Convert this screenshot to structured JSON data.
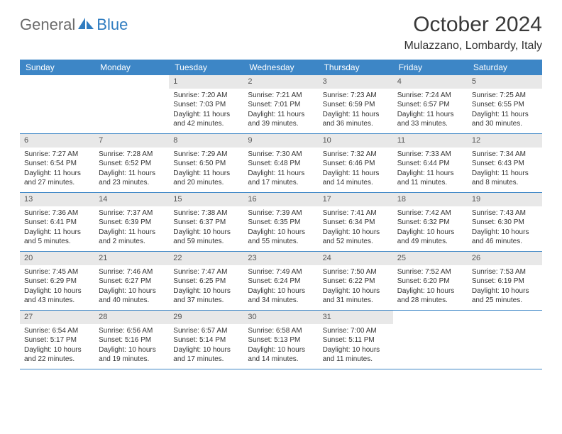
{
  "logo": {
    "part1": "General",
    "part2": "Blue"
  },
  "title": "October 2024",
  "location": "Mulazzano, Lombardy, Italy",
  "colors": {
    "header_bar": "#3d86c6",
    "header_text": "#ffffff",
    "daynum_bg": "#e8e8e8",
    "daynum_text": "#555555",
    "body_text": "#333333",
    "rule": "#3d86c6",
    "logo_gray": "#6b6b6b",
    "logo_blue": "#2f7cc0"
  },
  "dayNames": [
    "Sunday",
    "Monday",
    "Tuesday",
    "Wednesday",
    "Thursday",
    "Friday",
    "Saturday"
  ],
  "weeks": [
    [
      null,
      null,
      {
        "n": "1",
        "sr": "Sunrise: 7:20 AM",
        "ss": "Sunset: 7:03 PM",
        "dl1": "Daylight: 11 hours",
        "dl2": "and 42 minutes."
      },
      {
        "n": "2",
        "sr": "Sunrise: 7:21 AM",
        "ss": "Sunset: 7:01 PM",
        "dl1": "Daylight: 11 hours",
        "dl2": "and 39 minutes."
      },
      {
        "n": "3",
        "sr": "Sunrise: 7:23 AM",
        "ss": "Sunset: 6:59 PM",
        "dl1": "Daylight: 11 hours",
        "dl2": "and 36 minutes."
      },
      {
        "n": "4",
        "sr": "Sunrise: 7:24 AM",
        "ss": "Sunset: 6:57 PM",
        "dl1": "Daylight: 11 hours",
        "dl2": "and 33 minutes."
      },
      {
        "n": "5",
        "sr": "Sunrise: 7:25 AM",
        "ss": "Sunset: 6:55 PM",
        "dl1": "Daylight: 11 hours",
        "dl2": "and 30 minutes."
      }
    ],
    [
      {
        "n": "6",
        "sr": "Sunrise: 7:27 AM",
        "ss": "Sunset: 6:54 PM",
        "dl1": "Daylight: 11 hours",
        "dl2": "and 27 minutes."
      },
      {
        "n": "7",
        "sr": "Sunrise: 7:28 AM",
        "ss": "Sunset: 6:52 PM",
        "dl1": "Daylight: 11 hours",
        "dl2": "and 23 minutes."
      },
      {
        "n": "8",
        "sr": "Sunrise: 7:29 AM",
        "ss": "Sunset: 6:50 PM",
        "dl1": "Daylight: 11 hours",
        "dl2": "and 20 minutes."
      },
      {
        "n": "9",
        "sr": "Sunrise: 7:30 AM",
        "ss": "Sunset: 6:48 PM",
        "dl1": "Daylight: 11 hours",
        "dl2": "and 17 minutes."
      },
      {
        "n": "10",
        "sr": "Sunrise: 7:32 AM",
        "ss": "Sunset: 6:46 PM",
        "dl1": "Daylight: 11 hours",
        "dl2": "and 14 minutes."
      },
      {
        "n": "11",
        "sr": "Sunrise: 7:33 AM",
        "ss": "Sunset: 6:44 PM",
        "dl1": "Daylight: 11 hours",
        "dl2": "and 11 minutes."
      },
      {
        "n": "12",
        "sr": "Sunrise: 7:34 AM",
        "ss": "Sunset: 6:43 PM",
        "dl1": "Daylight: 11 hours",
        "dl2": "and 8 minutes."
      }
    ],
    [
      {
        "n": "13",
        "sr": "Sunrise: 7:36 AM",
        "ss": "Sunset: 6:41 PM",
        "dl1": "Daylight: 11 hours",
        "dl2": "and 5 minutes."
      },
      {
        "n": "14",
        "sr": "Sunrise: 7:37 AM",
        "ss": "Sunset: 6:39 PM",
        "dl1": "Daylight: 11 hours",
        "dl2": "and 2 minutes."
      },
      {
        "n": "15",
        "sr": "Sunrise: 7:38 AM",
        "ss": "Sunset: 6:37 PM",
        "dl1": "Daylight: 10 hours",
        "dl2": "and 59 minutes."
      },
      {
        "n": "16",
        "sr": "Sunrise: 7:39 AM",
        "ss": "Sunset: 6:35 PM",
        "dl1": "Daylight: 10 hours",
        "dl2": "and 55 minutes."
      },
      {
        "n": "17",
        "sr": "Sunrise: 7:41 AM",
        "ss": "Sunset: 6:34 PM",
        "dl1": "Daylight: 10 hours",
        "dl2": "and 52 minutes."
      },
      {
        "n": "18",
        "sr": "Sunrise: 7:42 AM",
        "ss": "Sunset: 6:32 PM",
        "dl1": "Daylight: 10 hours",
        "dl2": "and 49 minutes."
      },
      {
        "n": "19",
        "sr": "Sunrise: 7:43 AM",
        "ss": "Sunset: 6:30 PM",
        "dl1": "Daylight: 10 hours",
        "dl2": "and 46 minutes."
      }
    ],
    [
      {
        "n": "20",
        "sr": "Sunrise: 7:45 AM",
        "ss": "Sunset: 6:29 PM",
        "dl1": "Daylight: 10 hours",
        "dl2": "and 43 minutes."
      },
      {
        "n": "21",
        "sr": "Sunrise: 7:46 AM",
        "ss": "Sunset: 6:27 PM",
        "dl1": "Daylight: 10 hours",
        "dl2": "and 40 minutes."
      },
      {
        "n": "22",
        "sr": "Sunrise: 7:47 AM",
        "ss": "Sunset: 6:25 PM",
        "dl1": "Daylight: 10 hours",
        "dl2": "and 37 minutes."
      },
      {
        "n": "23",
        "sr": "Sunrise: 7:49 AM",
        "ss": "Sunset: 6:24 PM",
        "dl1": "Daylight: 10 hours",
        "dl2": "and 34 minutes."
      },
      {
        "n": "24",
        "sr": "Sunrise: 7:50 AM",
        "ss": "Sunset: 6:22 PM",
        "dl1": "Daylight: 10 hours",
        "dl2": "and 31 minutes."
      },
      {
        "n": "25",
        "sr": "Sunrise: 7:52 AM",
        "ss": "Sunset: 6:20 PM",
        "dl1": "Daylight: 10 hours",
        "dl2": "and 28 minutes."
      },
      {
        "n": "26",
        "sr": "Sunrise: 7:53 AM",
        "ss": "Sunset: 6:19 PM",
        "dl1": "Daylight: 10 hours",
        "dl2": "and 25 minutes."
      }
    ],
    [
      {
        "n": "27",
        "sr": "Sunrise: 6:54 AM",
        "ss": "Sunset: 5:17 PM",
        "dl1": "Daylight: 10 hours",
        "dl2": "and 22 minutes."
      },
      {
        "n": "28",
        "sr": "Sunrise: 6:56 AM",
        "ss": "Sunset: 5:16 PM",
        "dl1": "Daylight: 10 hours",
        "dl2": "and 19 minutes."
      },
      {
        "n": "29",
        "sr": "Sunrise: 6:57 AM",
        "ss": "Sunset: 5:14 PM",
        "dl1": "Daylight: 10 hours",
        "dl2": "and 17 minutes."
      },
      {
        "n": "30",
        "sr": "Sunrise: 6:58 AM",
        "ss": "Sunset: 5:13 PM",
        "dl1": "Daylight: 10 hours",
        "dl2": "and 14 minutes."
      },
      {
        "n": "31",
        "sr": "Sunrise: 7:00 AM",
        "ss": "Sunset: 5:11 PM",
        "dl1": "Daylight: 10 hours",
        "dl2": "and 11 minutes."
      },
      null,
      null
    ]
  ]
}
